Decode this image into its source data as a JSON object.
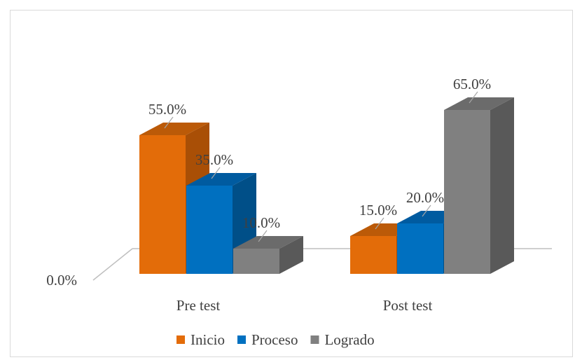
{
  "chart_data": {
    "type": "bar",
    "categories": [
      "Pre test",
      "Post test"
    ],
    "series": [
      {
        "name": "Inicio",
        "values": [
          55.0,
          15.0
        ],
        "color": "#e36c09",
        "side": "#a94f06",
        "top": "#bb5a08"
      },
      {
        "name": "Proceso",
        "values": [
          35.0,
          20.0
        ],
        "color": "#0070c0",
        "side": "#004f88",
        "top": "#005ba0"
      },
      {
        "name": "Logrado",
        "values": [
          10.0,
          65.0
        ],
        "color": "#808080",
        "side": "#595959",
        "top": "#6b6b6b"
      }
    ],
    "data_labels": [
      [
        "55.0%",
        "15.0%"
      ],
      [
        "35.0%",
        "20.0%"
      ],
      [
        "10.0%",
        "65.0%"
      ]
    ],
    "yticks": [
      "0.0%",
      "10.0%",
      "20.0%",
      "30.0%",
      "40.0%",
      "50.0%",
      "60.0%",
      "70.0%"
    ],
    "ylim": [
      0,
      70
    ],
    "grid": true,
    "legend": "bottom",
    "title": "",
    "xlabel": "",
    "ylabel": ""
  }
}
